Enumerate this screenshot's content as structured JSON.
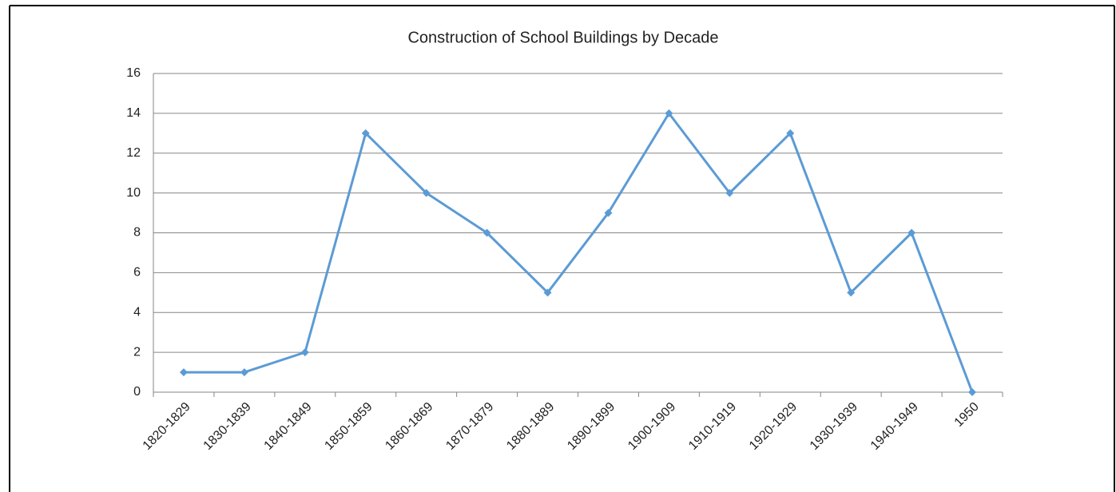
{
  "chart_data": {
    "type": "line",
    "title": "Construction of School Buildings by Decade",
    "categories": [
      "1820-1829",
      "1830-1839",
      "1840-1849",
      "1850-1859",
      "1860-1869",
      "1870-1879",
      "1880-1889",
      "1890-1899",
      "1900-1909",
      "1910-1919",
      "1920-1929",
      "1930-1939",
      "1940-1949",
      "1950"
    ],
    "values": [
      1,
      1,
      2,
      13,
      10,
      8,
      5,
      9,
      14,
      10,
      13,
      5,
      8,
      0
    ],
    "color": "#5b9bd5",
    "ylim": [
      0,
      16
    ],
    "yticks": [
      0,
      2,
      4,
      6,
      8,
      10,
      12,
      14,
      16
    ],
    "grid": true
  }
}
